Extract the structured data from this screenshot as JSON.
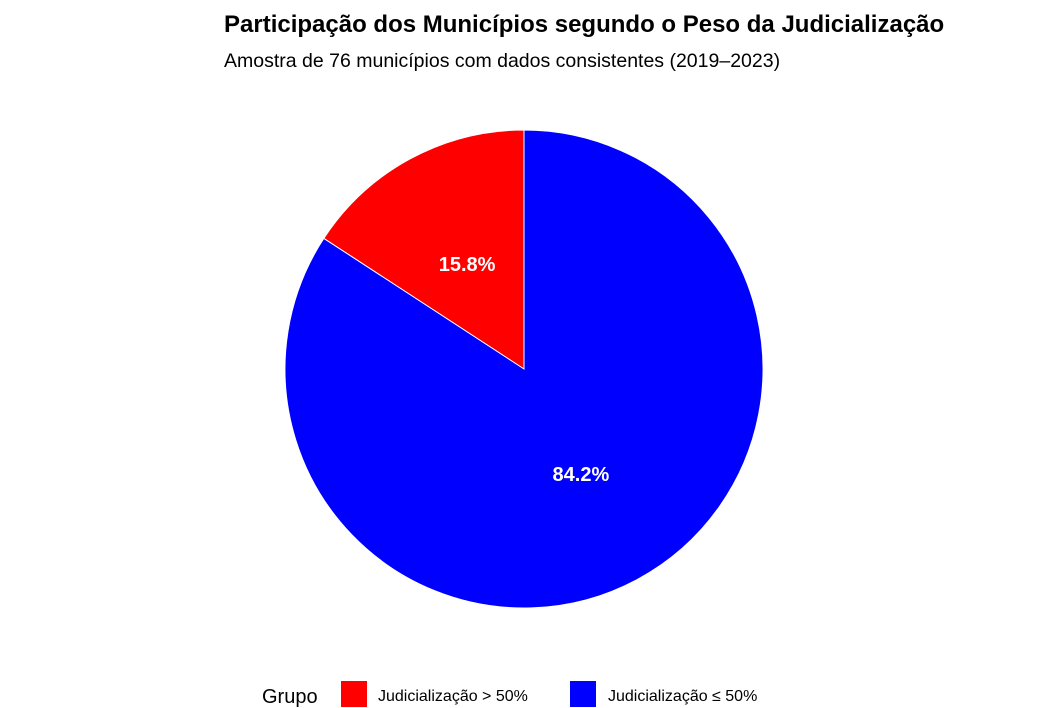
{
  "chart_data": {
    "type": "pie",
    "title": "Participação dos Municípios segundo o Peso da Judicialização",
    "subtitle": "Amostra de 76 municípios com dados consistentes (2019–2023)",
    "categories": [
      "Judicialização > 50%",
      "Judicialização ≤ 50%"
    ],
    "values": [
      15.8,
      84.2
    ],
    "labels": [
      "15.8%",
      "84.2%"
    ],
    "colors": [
      "#ff0000",
      "#0000ff"
    ],
    "legend": {
      "title": "Grupo",
      "position": "bottom"
    }
  }
}
